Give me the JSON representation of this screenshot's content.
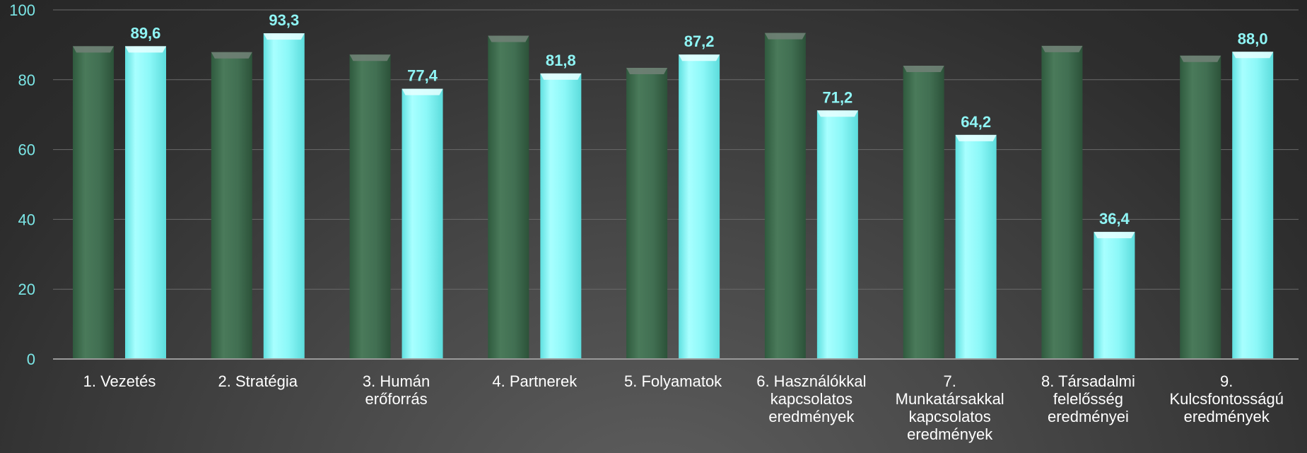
{
  "chart_data": {
    "type": "bar",
    "categories": [
      [
        "1. Vezetés"
      ],
      [
        "2. Stratégia"
      ],
      [
        "3. Humán",
        "erőforrás"
      ],
      [
        "4. Partnerek"
      ],
      [
        "5. Folyamatok"
      ],
      [
        "6. Használókkal",
        "kapcsolatos",
        "eredmények"
      ],
      [
        "7.",
        "Munkatársakkal",
        "kapcsolatos",
        "eredmények"
      ],
      [
        "8. Társadalmi",
        "felelősség",
        "eredményei"
      ],
      [
        "9.",
        "Kulcsfontosságú",
        "eredmények"
      ]
    ],
    "series": [
      {
        "color": "#3f6b4e",
        "values": [
          89.6,
          87.9,
          87.2,
          92.6,
          83.4,
          93.4,
          84.0,
          89.7,
          86.9
        ],
        "show_labels": false
      },
      {
        "color": "#8ffcfc",
        "values": [
          89.6,
          93.3,
          77.4,
          81.8,
          87.2,
          71.2,
          64.2,
          36.4,
          88.0
        ],
        "labels": [
          "89,6",
          "93,3",
          "77,4",
          "81,8",
          "87,2",
          "71,2",
          "64,2",
          "36,4",
          "88,0"
        ],
        "show_labels": true
      }
    ],
    "yticks": [
      0,
      20,
      40,
      60,
      80,
      100
    ],
    "ylim": [
      0,
      100
    ],
    "grid": true,
    "legend": "none"
  }
}
